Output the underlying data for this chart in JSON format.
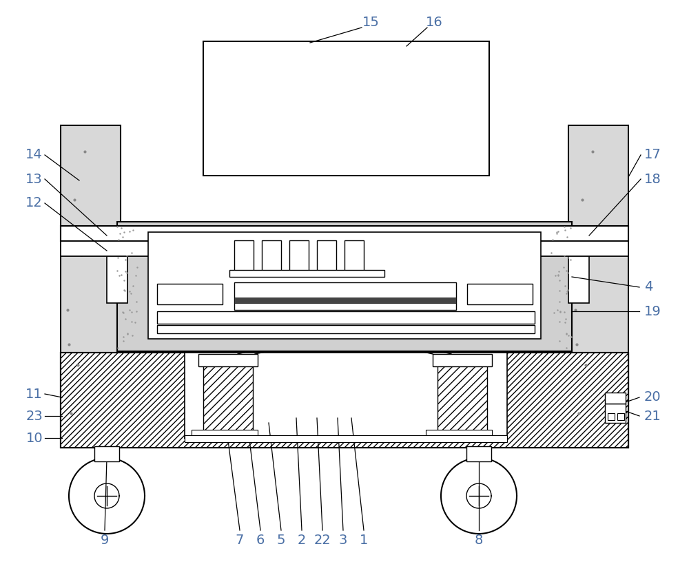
{
  "bg_color": "#ffffff",
  "line_color": "#000000",
  "label_color": "#4a6fa5",
  "fig_width": 10.0,
  "fig_height": 8.32
}
